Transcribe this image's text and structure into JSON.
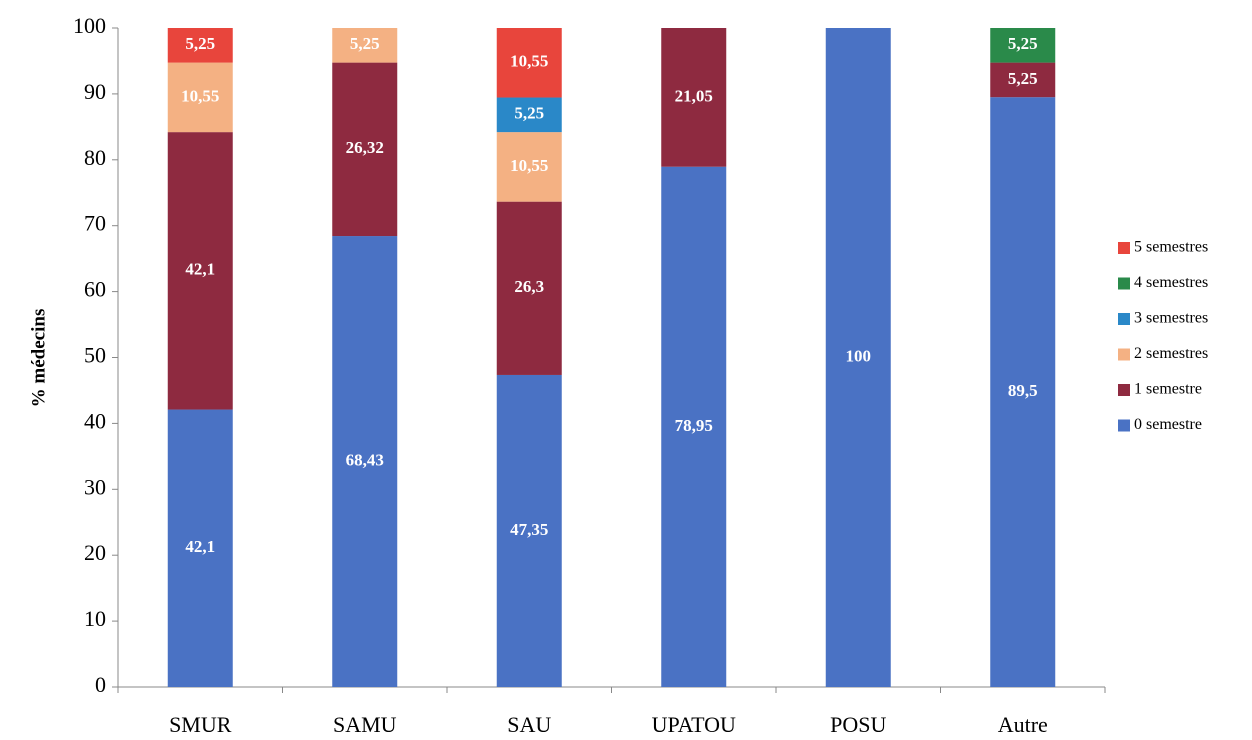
{
  "chart_data": {
    "type": "stacked_bar",
    "ylabel": "% médecins",
    "categories": [
      "SMUR",
      "SAMU",
      "SAU",
      "UPATOU",
      "POSU",
      "Autre"
    ],
    "ylim": [
      0,
      100
    ],
    "yticks": [
      0,
      10,
      20,
      30,
      40,
      50,
      60,
      70,
      80,
      90,
      100
    ],
    "legend": "right",
    "series": [
      {
        "name": "0 semestre",
        "color": "#4a72c4",
        "values": [
          42.1,
          68.43,
          47.35,
          78.95,
          100,
          89.5
        ],
        "value_labels": [
          "42,1",
          "68,43",
          "47,35",
          "78,95",
          "100",
          "89,5"
        ]
      },
      {
        "name": "1 semestre",
        "color": "#8e2a40",
        "values": [
          42.1,
          26.32,
          26.3,
          21.05,
          null,
          5.25
        ],
        "value_labels": [
          "42,1",
          "26,32",
          "26,3",
          "21,05",
          null,
          "5,25"
        ]
      },
      {
        "name": "2 semestres",
        "color": "#f4b183",
        "values": [
          10.55,
          5.25,
          10.55,
          null,
          null,
          null
        ],
        "value_labels": [
          "10,55",
          "5,25",
          "10,55",
          null,
          null,
          null
        ]
      },
      {
        "name": "3 semestres",
        "color": "#2a88c8",
        "values": [
          null,
          null,
          5.25,
          null,
          null,
          null
        ],
        "value_labels": [
          null,
          null,
          "5,25",
          null,
          null,
          null
        ]
      },
      {
        "name": "4 semestres",
        "color": "#2a8a4a",
        "values": [
          null,
          null,
          null,
          null,
          null,
          5.25
        ],
        "value_labels": [
          null,
          null,
          null,
          null,
          null,
          "5,25"
        ]
      },
      {
        "name": "5 semestres",
        "color": "#e8453c",
        "values": [
          5.25,
          null,
          10.55,
          null,
          null,
          null
        ],
        "value_labels": [
          "5,25",
          null,
          "10,55",
          null,
          null,
          null
        ]
      }
    ]
  }
}
